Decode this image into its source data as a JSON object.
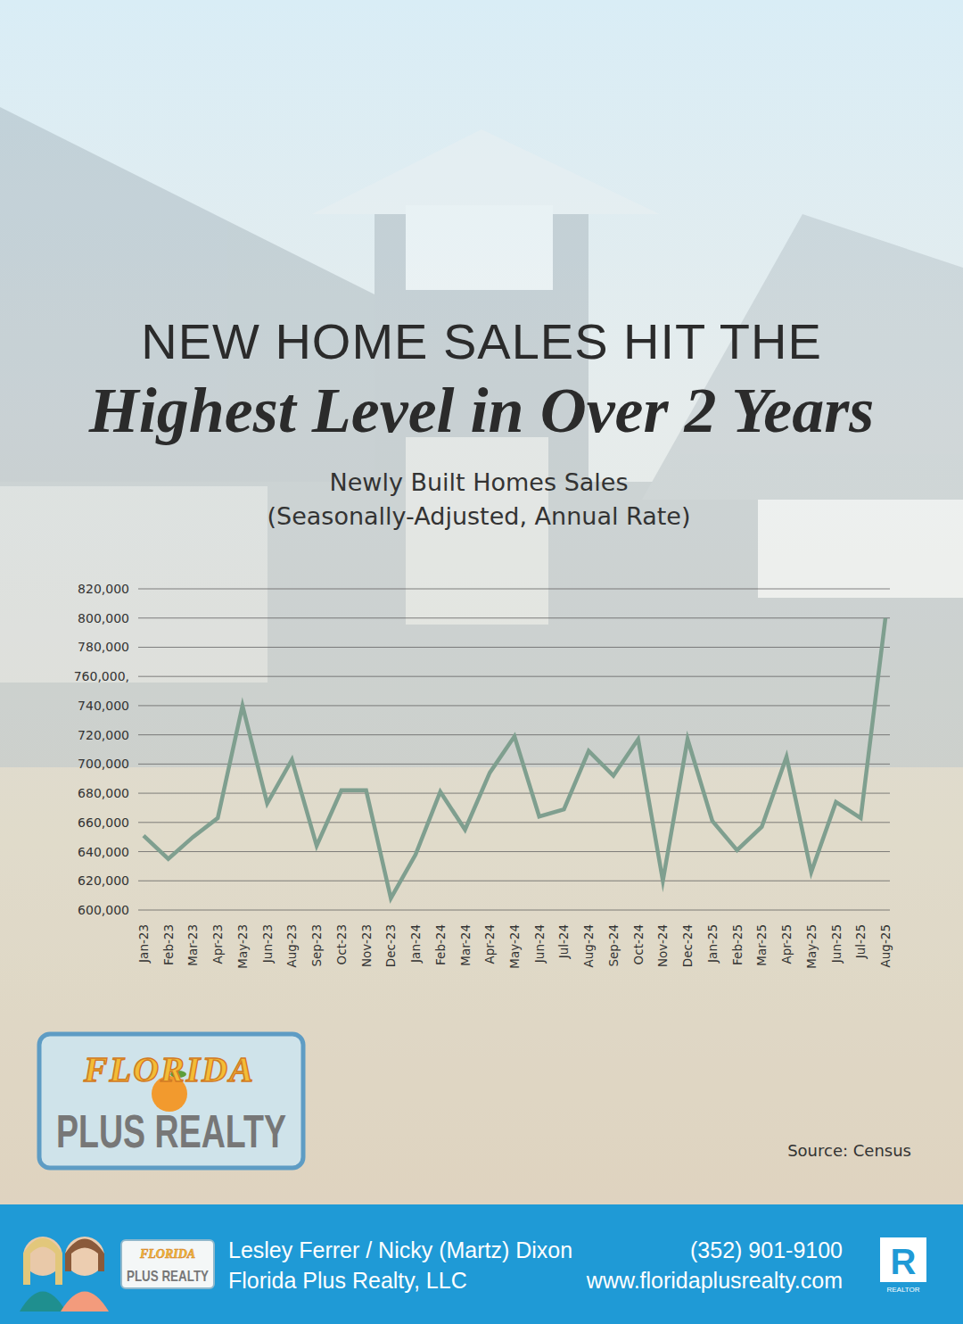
{
  "page": {
    "headline": [
      "NEW HOME SALES HIT THE",
      "Highest Level in Over 2 Years"
    ],
    "source": "Source: Census",
    "logo": {
      "top": "FLORIDA",
      "bottom": "PLUS REALTY"
    },
    "footer": {
      "names": "Lesley Ferrer / Nicky (Martz) Dixon",
      "company": "Florida Plus Realty, LLC",
      "phone": "(352) 901-9100",
      "website": "www.floridaplusrealty.com",
      "realtor_mark": "R",
      "realtor_label": "REALTOR"
    }
  },
  "chart_data": {
    "type": "line",
    "title": "Newly Built Homes Sales",
    "subtitle": "(Seasonally-Adjusted, Annual Rate)",
    "categories": [
      "Jan-23",
      "Feb-23",
      "Mar-23",
      "Apr-23",
      "May-23",
      "Jun-23",
      "Aug-23",
      "Sep-23",
      "Oct-23",
      "Nov-23",
      "Dec-23",
      "Jan-24",
      "Feb-24",
      "Mar-24",
      "Apr-24",
      "May-24",
      "Jun-24",
      "Jul-24",
      "Aug-24",
      "Sep-24",
      "Oct-24",
      "Nov-24",
      "Dec-24",
      "Jan-25",
      "Feb-25",
      "Mar-25",
      "Apr-25",
      "May-25",
      "Jun-25",
      "Jul-25",
      "Aug-25"
    ],
    "values": [
      651000,
      635000,
      650000,
      663000,
      740000,
      673000,
      703000,
      644000,
      682000,
      682000,
      608000,
      638000,
      681000,
      655000,
      694000,
      719000,
      664000,
      669000,
      709000,
      692000,
      717000,
      620000,
      717000,
      661000,
      641000,
      657000,
      705000,
      626000,
      674000,
      663000,
      800000
    ],
    "color": "#7f9f8f",
    "ylim": [
      600000,
      820000
    ],
    "yticks": [
      {
        "value": 600000,
        "label": "600,000"
      },
      {
        "value": 620000,
        "label": "620,000"
      },
      {
        "value": 640000,
        "label": "640,000"
      },
      {
        "value": 660000,
        "label": "660,000"
      },
      {
        "value": 680000,
        "label": "680,000"
      },
      {
        "value": 700000,
        "label": "700,000"
      },
      {
        "value": 720000,
        "label": "720,000"
      },
      {
        "value": 740000,
        "label": "740,000"
      },
      {
        "value": 760000,
        "label": "760,000,"
      },
      {
        "value": 780000,
        "label": "780,000"
      },
      {
        "value": 800000,
        "label": "800,000"
      },
      {
        "value": 820000,
        "label": "820,000"
      }
    ],
    "grid": true
  }
}
